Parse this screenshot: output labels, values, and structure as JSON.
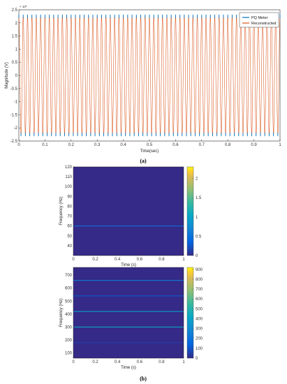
{
  "chart_data": [
    {
      "type": "line",
      "panel": "a",
      "caption": "(a)",
      "xlabel": "Time(sec)",
      "ylabel": "Magnitude (V)",
      "exponent_label": "× 10³",
      "xlim": [
        0,
        1
      ],
      "ylim": [
        -2.5,
        2.5
      ],
      "x_ticks": [
        "0",
        "0.1",
        "0.2",
        "0.3",
        "0.4",
        "0.5",
        "0.6",
        "0.7",
        "0.8",
        "0.9",
        "1"
      ],
      "y_ticks": [
        "2.5",
        "2",
        "1.5",
        "1",
        "0.5",
        "0",
        "-0.5",
        "-1",
        "-1.5",
        "-2",
        "-2.5"
      ],
      "legend_position": "top-right",
      "grid": false,
      "signal": {
        "frequency_hz": 60,
        "amplitude": 2.25,
        "unit_scale": 1000
      },
      "series": [
        {
          "name": "PQ Meter",
          "color": "#0072bd",
          "style": "sampled-points"
        },
        {
          "name": "Reconstructed",
          "color": "#d95319",
          "style": "line"
        }
      ]
    },
    {
      "type": "heatmap",
      "panel": "b-top",
      "xlabel": "Time (s)",
      "ylabel": "Frequency (Hz)",
      "xlim": [
        0,
        1
      ],
      "ylim": [
        30,
        120
      ],
      "x_ticks": [
        "0",
        "0.2",
        "0.4",
        "0.6",
        "0.8",
        "1"
      ],
      "y_ticks": [
        "120",
        "110",
        "100",
        "90",
        "80",
        "70",
        "60",
        "50",
        "40"
      ],
      "colorbar_ticks": [
        "2",
        "1.5",
        "1",
        "0.5",
        "0"
      ],
      "colorbar_range": [
        0,
        2.3
      ],
      "colormap": "parula",
      "lines": [
        {
          "frequency_hz": 60,
          "level": 0.5
        }
      ]
    },
    {
      "type": "heatmap",
      "panel": "b-bottom",
      "caption": "(b)",
      "xlabel": "Time (s)",
      "ylabel": "Frequency (Hz)",
      "xlim": [
        0,
        1
      ],
      "ylim": [
        60,
        760
      ],
      "x_ticks": [
        "0",
        "0.2",
        "0.4",
        "0.6",
        "0.8",
        "1"
      ],
      "y_ticks": [
        "700",
        "600",
        "500",
        "400",
        "300",
        "200",
        "100"
      ],
      "colorbar_ticks": [
        "900",
        "800",
        "700",
        "600",
        "500",
        "400",
        "300",
        "200",
        "100",
        "0"
      ],
      "colorbar_range": [
        0,
        920
      ],
      "colormap": "parula",
      "lines": [
        {
          "frequency_hz": 660,
          "level": 240
        },
        {
          "frequency_hz": 540,
          "level": 120
        },
        {
          "frequency_hz": 420,
          "level": 380
        },
        {
          "frequency_hz": 300,
          "level": 420
        },
        {
          "frequency_hz": 180,
          "level": 60
        }
      ]
    }
  ]
}
